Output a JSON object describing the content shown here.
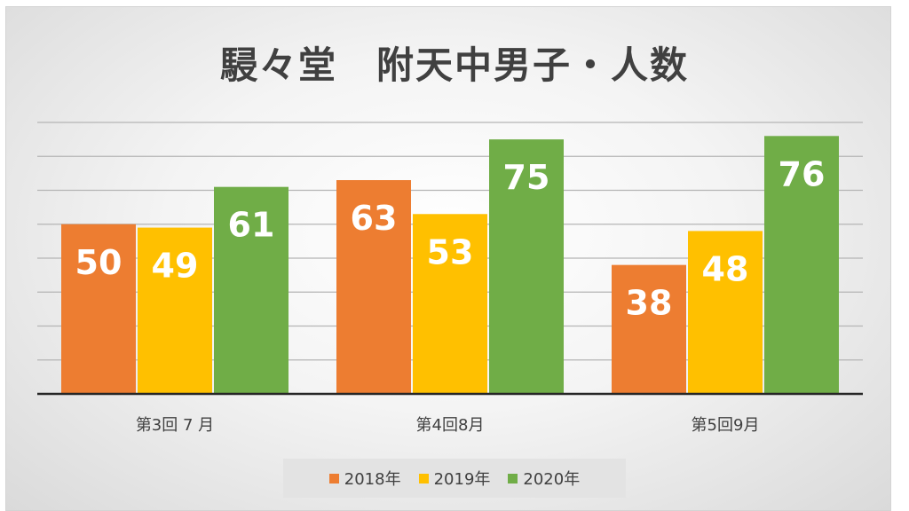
{
  "chart_data": {
    "type": "bar",
    "title": "駸々堂　附天中男子・人数",
    "categories": [
      "第3回 7 月",
      "第4回8月",
      "第5回9月"
    ],
    "series": [
      {
        "name": "2018年",
        "values": [
          50,
          63,
          38
        ],
        "color": "#ED7D31"
      },
      {
        "name": "2019年",
        "values": [
          49,
          53,
          48
        ],
        "color": "#FFC000"
      },
      {
        "name": "2020年",
        "values": [
          61,
          75,
          76
        ],
        "color": "#70AD47"
      }
    ],
    "xlabel": "",
    "ylabel": "",
    "ylim": [
      0,
      80
    ],
    "grid": true,
    "legend_position": "bottom"
  }
}
